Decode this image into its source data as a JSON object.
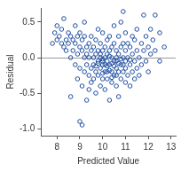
{
  "chart_data": {
    "type": "scatter",
    "x_label": "Predicted Value",
    "y_label": "Residual",
    "color": "#1f4fa0",
    "marker": "open circle",
    "xlim": [
      7.3,
      13.2
    ],
    "xticks": [
      8,
      9,
      10,
      11,
      12,
      13
    ],
    "ylim": [
      -1.1,
      0.7
    ],
    "yticks": [
      {
        "value": -1.0,
        "label": "-1.0"
      },
      {
        "value": -0.5,
        "label": "-0.5"
      },
      {
        "value": 0.0,
        "label": "0.0"
      },
      {
        "value": 0.5,
        "label": "0.5"
      }
    ],
    "x": [
      7.8,
      7.9,
      8.0,
      8.0,
      8.1,
      8.2,
      8.2,
      8.3,
      8.3,
      8.4,
      8.4,
      8.5,
      8.5,
      8.6,
      8.6,
      8.6,
      8.7,
      8.7,
      8.8,
      8.8,
      8.8,
      8.9,
      8.9,
      8.9,
      9.0,
      9.0,
      9.0,
      9.0,
      9.1,
      9.1,
      9.1,
      9.1,
      9.2,
      9.2,
      9.2,
      9.2,
      9.3,
      9.3,
      9.3,
      9.3,
      9.4,
      9.4,
      9.4,
      9.4,
      9.5,
      9.5,
      9.5,
      9.5,
      9.6,
      9.6,
      9.6,
      9.6,
      9.7,
      9.7,
      9.7,
      9.7,
      9.8,
      9.8,
      9.8,
      9.8,
      9.9,
      9.9,
      9.9,
      9.9,
      10.0,
      10.0,
      10.0,
      10.0,
      10.0,
      10.1,
      10.1,
      10.1,
      10.1,
      10.2,
      10.2,
      10.2,
      10.2,
      10.3,
      10.3,
      10.3,
      10.3,
      10.4,
      10.4,
      10.4,
      10.4,
      10.5,
      10.5,
      10.5,
      10.5,
      10.6,
      10.6,
      10.6,
      10.6,
      10.7,
      10.7,
      10.7,
      10.7,
      10.8,
      10.8,
      10.8,
      10.8,
      10.9,
      10.9,
      10.9,
      10.9,
      11.0,
      11.0,
      11.0,
      11.0,
      11.1,
      11.1,
      11.1,
      11.2,
      11.2,
      11.2,
      11.3,
      11.3,
      11.3,
      11.4,
      11.4,
      11.4,
      11.5,
      11.5,
      11.5,
      11.6,
      11.6,
      11.7,
      11.7,
      11.8,
      11.8,
      11.9,
      11.9,
      12.0,
      12.0,
      12.1,
      12.1,
      12.2,
      12.3,
      12.3,
      12.5,
      12.5,
      12.7,
      9.8,
      10.0,
      10.2,
      10.4,
      10.6,
      10.8,
      9.9,
      10.1,
      10.3,
      10.5,
      10.7,
      10.9,
      11.0,
      10.2,
      10.0,
      10.4,
      10.6,
      9.7,
      11.2,
      10.3
    ],
    "values": [
      0.2,
      0.35,
      0.45,
      0.25,
      0.3,
      0.2,
      0.4,
      0.55,
      0.15,
      0.25,
      0.1,
      0.35,
      0.2,
      0.0,
      -0.55,
      0.3,
      0.1,
      0.25,
      -0.1,
      0.2,
      0.45,
      0.05,
      -0.3,
      0.3,
      -0.9,
      0.15,
      -0.15,
      0.35,
      -0.95,
      0.1,
      -0.4,
      0.25,
      0.0,
      -0.2,
      0.3,
      0.5,
      -0.1,
      0.15,
      -0.6,
      0.05,
      -0.25,
      0.2,
      0.0,
      -0.45,
      0.1,
      -0.15,
      0.3,
      -0.35,
      0.0,
      -0.1,
      0.15,
      -0.3,
      0.05,
      -0.2,
      0.25,
      -0.5,
      -0.05,
      0.1,
      -0.25,
      0.4,
      0.0,
      -0.15,
      0.2,
      -0.4,
      -0.05,
      0.1,
      -0.3,
      0.35,
      -0.1,
      0.0,
      -0.2,
      0.15,
      -0.45,
      -0.05,
      0.25,
      -0.3,
      0.05,
      -0.1,
      0.1,
      -0.6,
      0.3,
      0.0,
      -0.2,
      0.15,
      -0.35,
      -0.05,
      0.2,
      -0.25,
      0.45,
      0.0,
      -0.15,
      0.1,
      -0.4,
      0.05,
      -0.2,
      0.3,
      -0.55,
      -0.1,
      0.15,
      -0.3,
      0.5,
      0.65,
      0.0,
      -0.2,
      0.2,
      -0.05,
      0.1,
      -0.35,
      0.35,
      0.0,
      -0.25,
      0.2,
      -0.1,
      0.15,
      -0.4,
      0.05,
      -0.2,
      0.3,
      -0.05,
      0.25,
      -0.3,
      0.1,
      -0.15,
      0.4,
      0.0,
      -0.25,
      0.2,
      -0.1,
      0.6,
      0.1,
      -0.05,
      0.3,
      0.15,
      -0.2,
      0.4,
      0.05,
      0.25,
      0.6,
      0.1,
      -0.05,
      0.35,
      0.15,
      -0.08,
      -0.02,
      -0.12,
      -0.08,
      -0.05,
      -0.02,
      0.05,
      -0.1,
      0.02,
      -0.12,
      -0.08,
      -0.1,
      -0.15,
      -0.2,
      -0.22,
      -0.28,
      -0.25,
      -0.12,
      -0.03,
      -0.18
    ]
  }
}
